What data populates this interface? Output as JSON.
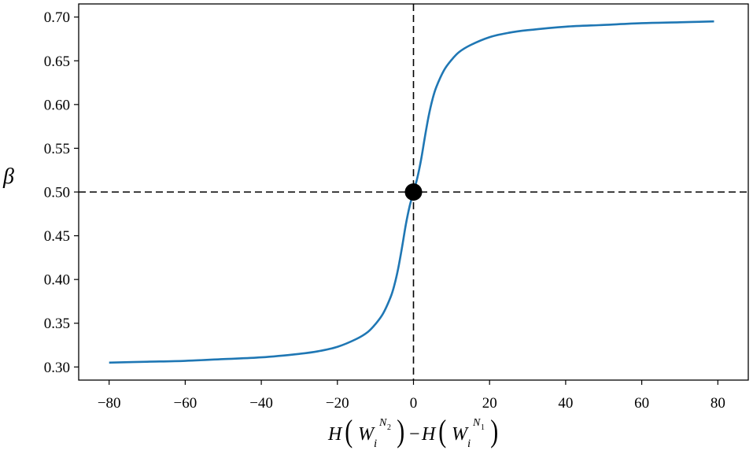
{
  "chart_data": {
    "type": "line",
    "title": "",
    "xlabel": "",
    "ylabel": "",
    "xlim": [
      -88,
      88
    ],
    "ylim": [
      0.285,
      0.715
    ],
    "x_ticks": [
      -80,
      -60,
      -40,
      -20,
      0,
      20,
      40,
      60,
      80
    ],
    "x_tick_labels": [
      "−80",
      "−60",
      "−40",
      "−20",
      "0",
      "20",
      "40",
      "60",
      "80"
    ],
    "y_ticks": [
      0.3,
      0.35,
      0.4,
      0.45,
      0.5,
      0.55,
      0.6,
      0.65,
      0.7
    ],
    "y_tick_labels": [
      "0.30",
      "0.35",
      "0.40",
      "0.45",
      "0.50",
      "0.55",
      "0.60",
      "0.65",
      "0.70"
    ],
    "grid": false,
    "series": [
      {
        "color": "#1f77b4",
        "x": [
          -80,
          -70,
          -60,
          -50,
          -40,
          -30,
          -25,
          -20,
          -15,
          -12,
          -10,
          -8,
          -6,
          -5,
          -4,
          -3,
          -2,
          -1,
          0,
          1,
          2,
          3,
          4,
          5,
          6,
          8,
          10,
          12,
          15,
          20,
          25,
          30,
          40,
          50,
          60,
          70,
          79
        ],
        "y": [
          0.305,
          0.306,
          0.307,
          0.309,
          0.311,
          0.315,
          0.318,
          0.323,
          0.332,
          0.34,
          0.349,
          0.361,
          0.38,
          0.394,
          0.413,
          0.437,
          0.463,
          0.484,
          0.5,
          0.516,
          0.537,
          0.563,
          0.587,
          0.606,
          0.62,
          0.639,
          0.651,
          0.66,
          0.668,
          0.677,
          0.682,
          0.685,
          0.689,
          0.691,
          0.693,
          0.694,
          0.695
        ]
      }
    ],
    "reference_lines": {
      "x": 0,
      "y": 0.5,
      "color": "#000000"
    },
    "marker": {
      "x": 0,
      "y": 0.5,
      "color": "#000000"
    }
  }
}
